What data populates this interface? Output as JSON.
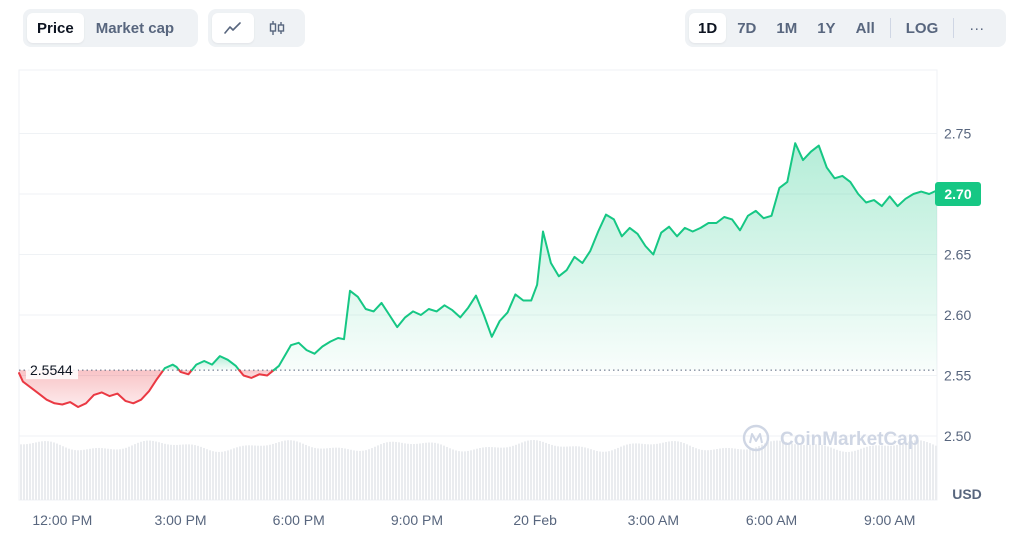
{
  "toolbar": {
    "metric_tabs": [
      "Price",
      "Market cap"
    ],
    "active_metric": "Price",
    "chart_types": [
      {
        "icon": "line-chart-icon"
      },
      {
        "icon": "candlestick-icon"
      }
    ],
    "ranges": [
      "1D",
      "7D",
      "1M",
      "1Y",
      "All"
    ],
    "active_range": "1D",
    "log_label": "LOG",
    "more_label": "···"
  },
  "watermark": "CoinMarketCap",
  "colors": {
    "up": "#16c784",
    "down": "#ea3943",
    "grid": "#eff2f5",
    "volume": "#eaecef",
    "text": "#58667e"
  },
  "chart_data": {
    "type": "area",
    "title": "",
    "xlabel": "",
    "ylabel": "USD",
    "unit": "USD",
    "ylim": [
      2.5,
      2.75
    ],
    "y_ticks": [
      "2.75",
      "2.70",
      "2.65",
      "2.60",
      "2.55",
      "2.50"
    ],
    "x_ticks": [
      "12:00 PM",
      "3:00 PM",
      "6:00 PM",
      "9:00 PM",
      "20 Feb",
      "3:00 AM",
      "6:00 AM",
      "9:00 AM"
    ],
    "x_tick_hours": [
      0,
      3,
      6,
      9,
      12,
      15,
      18,
      21
    ],
    "x_range_hours": [
      -1.1,
      22.2
    ],
    "reference_price": 2.5544,
    "reference_label": "2.5544",
    "current_price": 2.7,
    "current_label": "2.70",
    "grid": true,
    "legend": "none",
    "series": [
      {
        "x_hours": [
          -1.1,
          -1.0,
          -0.8,
          -0.6,
          -0.4,
          -0.2,
          0.0,
          0.2,
          0.4,
          0.6,
          0.8,
          1.0,
          1.2,
          1.4,
          1.6,
          1.8,
          2.0,
          2.2,
          2.4,
          2.6,
          2.8,
          2.9,
          3.0,
          3.2,
          3.4,
          3.6,
          3.8,
          4.0,
          4.2,
          4.4,
          4.6,
          4.8,
          5.0,
          5.2,
          5.5,
          5.8,
          6.0,
          6.2,
          6.4,
          6.6,
          6.8,
          7.0,
          7.15,
          7.3,
          7.5,
          7.7,
          7.9,
          8.1,
          8.3,
          8.5,
          8.7,
          8.9,
          9.1,
          9.3,
          9.5,
          9.7,
          9.9,
          10.1,
          10.3,
          10.5,
          10.7,
          10.9,
          11.1,
          11.3,
          11.5,
          11.7,
          11.9,
          12.05,
          12.2,
          12.4,
          12.6,
          12.8,
          13.0,
          13.2,
          13.4,
          13.6,
          13.8,
          14.0,
          14.2,
          14.4,
          14.6,
          14.8,
          15.0,
          15.2,
          15.4,
          15.6,
          15.8,
          16.0,
          16.2,
          16.4,
          16.6,
          16.8,
          17.0,
          17.2,
          17.4,
          17.6,
          17.8,
          18.0,
          18.2,
          18.4,
          18.6,
          18.8,
          19.0,
          19.2,
          19.4,
          19.6,
          19.8,
          20.0,
          20.2,
          20.4,
          20.6,
          20.8,
          21.0,
          21.2,
          21.4,
          21.6,
          21.8,
          22.0,
          22.2
        ],
        "values": [
          2.552,
          2.545,
          2.54,
          2.535,
          2.53,
          2.527,
          2.526,
          2.528,
          2.524,
          2.527,
          2.534,
          2.536,
          2.533,
          2.535,
          2.529,
          2.527,
          2.53,
          2.537,
          2.547,
          2.556,
          2.559,
          2.557,
          2.553,
          2.551,
          2.559,
          2.562,
          2.559,
          2.566,
          2.563,
          2.558,
          2.55,
          2.548,
          2.551,
          2.55,
          2.558,
          2.575,
          2.577,
          2.571,
          2.568,
          2.574,
          2.578,
          2.581,
          2.58,
          2.62,
          2.615,
          2.605,
          2.603,
          2.61,
          2.6,
          2.59,
          2.598,
          2.603,
          2.6,
          2.605,
          2.603,
          2.608,
          2.604,
          2.598,
          2.606,
          2.616,
          2.6,
          2.582,
          2.595,
          2.602,
          2.617,
          2.612,
          2.612,
          2.625,
          2.669,
          2.643,
          2.632,
          2.637,
          2.648,
          2.643,
          2.653,
          2.669,
          2.683,
          2.679,
          2.665,
          2.672,
          2.667,
          2.657,
          2.65,
          2.668,
          2.673,
          2.665,
          2.672,
          2.669,
          2.672,
          2.676,
          2.676,
          2.681,
          2.679,
          2.67,
          2.682,
          2.686,
          2.68,
          2.682,
          2.705,
          2.71,
          2.742,
          2.728,
          2.735,
          2.74,
          2.722,
          2.713,
          2.715,
          2.71,
          2.7,
          2.693,
          2.695,
          2.69,
          2.698,
          2.69,
          2.696,
          2.7,
          2.702,
          2.7,
          2.703
        ]
      }
    ]
  }
}
